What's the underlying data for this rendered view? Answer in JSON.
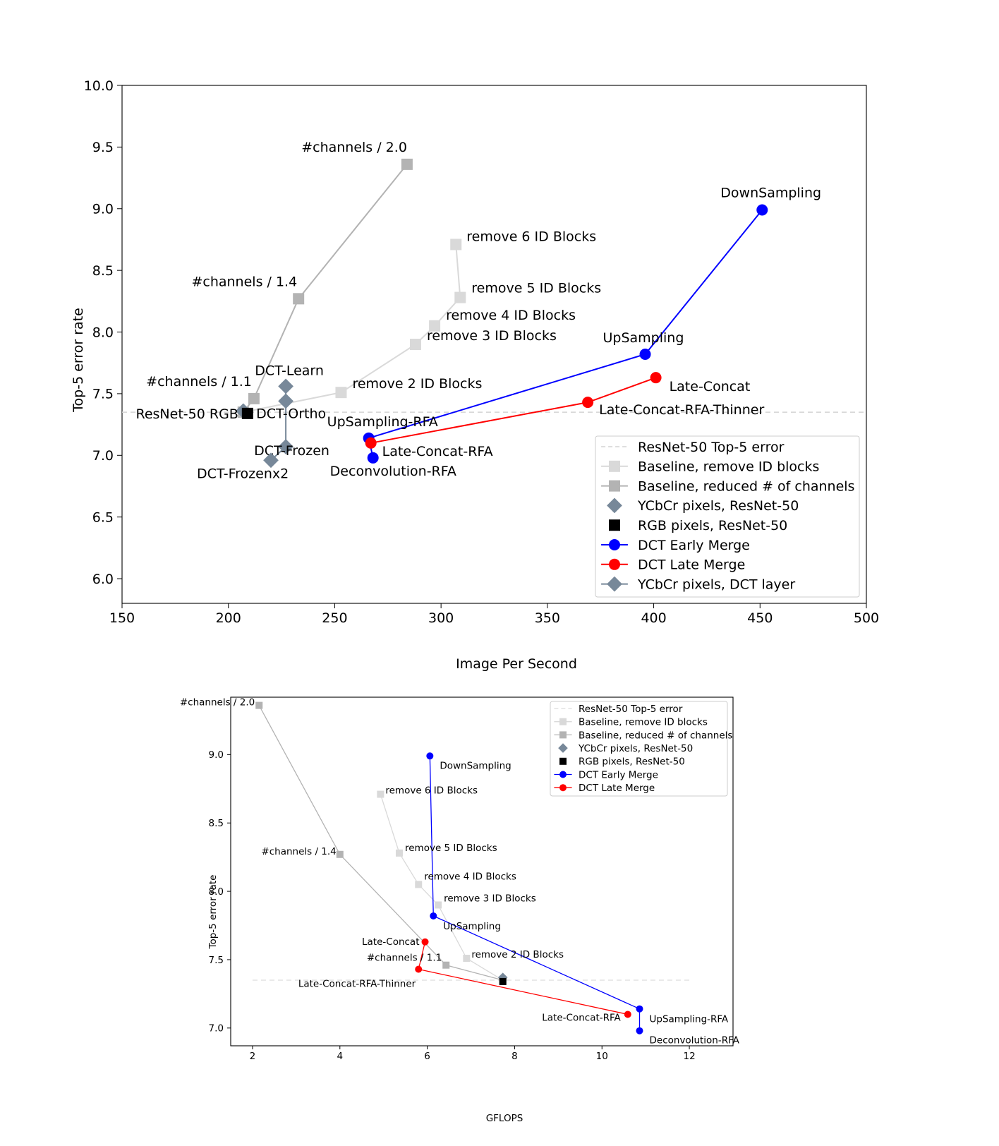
{
  "chart_data": [
    {
      "type": "scatter",
      "title": "",
      "xlabel": "Image Per Second",
      "ylabel": "Top-5 error rate",
      "xlim": [
        150,
        500
      ],
      "ylim": [
        5.8,
        10.0
      ],
      "xticks": [
        "150",
        "200",
        "250",
        "300",
        "350",
        "400",
        "450",
        "500"
      ],
      "yticks": [
        "6.0",
        "6.5",
        "7.0",
        "7.5",
        "8.0",
        "8.5",
        "9.0",
        "9.5",
        "10.0"
      ],
      "grid": false,
      "legend_position": "bottom-right",
      "reference_line": {
        "name": "ResNet-50 Top-5 error",
        "y": 7.35,
        "color": "#d3d3d3"
      },
      "series": [
        {
          "name": "Baseline, remove ID blocks",
          "marker": "square",
          "color": "#d9d9d9",
          "connected": true,
          "points": [
            {
              "x": 207,
              "y": 7.35,
              "label": ""
            },
            {
              "x": 253,
              "y": 7.51,
              "label": "remove 2 ID Blocks"
            },
            {
              "x": 288,
              "y": 7.9,
              "label": "remove 3 ID Blocks"
            },
            {
              "x": 297,
              "y": 8.05,
              "label": "remove 4 ID Blocks"
            },
            {
              "x": 309,
              "y": 8.28,
              "label": "remove 5 ID Blocks"
            },
            {
              "x": 307,
              "y": 8.71,
              "label": "remove 6 ID Blocks"
            }
          ]
        },
        {
          "name": "Baseline, reduced # of channels",
          "marker": "square",
          "color": "#b3b3b3",
          "connected": true,
          "points": [
            {
              "x": 207,
              "y": 7.35,
              "label": ""
            },
            {
              "x": 212,
              "y": 7.46,
              "label": "#channels / 1.1"
            },
            {
              "x": 233,
              "y": 8.27,
              "label": "#channels / 1.4"
            },
            {
              "x": 284,
              "y": 9.36,
              "label": "#channels / 2.0"
            }
          ]
        },
        {
          "name": "YCbCr pixels, ResNet-50",
          "marker": "diamond",
          "color": "#778899",
          "connected": false,
          "points": [
            {
              "x": 207,
              "y": 7.36,
              "label": ""
            }
          ]
        },
        {
          "name": "RGB pixels, ResNet-50",
          "marker": "square",
          "color": "#000000",
          "connected": false,
          "points": [
            {
              "x": 209,
              "y": 7.34,
              "label": "ResNet-50 RGB"
            }
          ]
        },
        {
          "name": "DCT Early Merge",
          "marker": "circle",
          "color": "#0000ff",
          "connected": true,
          "points": [
            {
              "x": 268,
              "y": 6.98,
              "label": "Deconvolution-RFA"
            },
            {
              "x": 266,
              "y": 7.14,
              "label": "UpSampling-RFA"
            },
            {
              "x": 396,
              "y": 7.82,
              "label": "UpSampling"
            },
            {
              "x": 451,
              "y": 8.99,
              "label": "DownSampling"
            }
          ]
        },
        {
          "name": "DCT Late Merge",
          "marker": "circle",
          "color": "#ff0000",
          "connected": true,
          "points": [
            {
              "x": 267,
              "y": 7.1,
              "label": "Late-Concat-RFA"
            },
            {
              "x": 369,
              "y": 7.43,
              "label": "Late-Concat-RFA-Thinner"
            },
            {
              "x": 401,
              "y": 7.63,
              "label": "Late-Concat"
            }
          ]
        },
        {
          "name": "YCbCr pixels, DCT layer",
          "marker": "diamond",
          "color": "#778899",
          "connected": true,
          "points": [
            {
              "x": 227,
              "y": 7.56,
              "label": "DCT-Learn"
            },
            {
              "x": 227,
              "y": 7.44,
              "label": "DCT-Ortho"
            },
            {
              "x": 227,
              "y": 7.07,
              "label": "DCT-Frozen"
            },
            {
              "x": 220,
              "y": 6.96,
              "label": "DCT-Frozenx2"
            }
          ]
        }
      ]
    },
    {
      "type": "scatter",
      "title": "",
      "xlabel": "GFLOPS",
      "ylabel": "Top-5 error rate",
      "xlim": [
        1.5,
        13.0
      ],
      "ylim": [
        6.87,
        9.42
      ],
      "xticks": [
        "2",
        "4",
        "6",
        "8",
        "10",
        "12"
      ],
      "yticks": [
        "7.0",
        "7.5",
        "8.0",
        "8.5",
        "9.0"
      ],
      "grid": false,
      "legend_position": "top-right",
      "reference_line": {
        "name": "ResNet-50 Top-5 error",
        "y": 7.35,
        "color": "#d3d3d3"
      },
      "series": [
        {
          "name": "Baseline, remove ID blocks",
          "marker": "square",
          "color": "#d9d9d9",
          "connected": true,
          "points": [
            {
              "x": 7.73,
              "y": 7.35,
              "label": ""
            },
            {
              "x": 6.9,
              "y": 7.51,
              "label": "remove 2 ID Blocks"
            },
            {
              "x": 6.25,
              "y": 7.9,
              "label": "remove 3 ID Blocks"
            },
            {
              "x": 5.8,
              "y": 8.05,
              "label": "remove 4 ID Blocks"
            },
            {
              "x": 5.36,
              "y": 8.28,
              "label": "remove 5 ID Blocks"
            },
            {
              "x": 4.93,
              "y": 8.71,
              "label": "remove 6 ID Blocks"
            }
          ]
        },
        {
          "name": "Baseline, reduced # of channels",
          "marker": "square",
          "color": "#b3b3b3",
          "connected": true,
          "points": [
            {
              "x": 7.73,
              "y": 7.35,
              "label": ""
            },
            {
              "x": 6.43,
              "y": 7.46,
              "label": "#channels / 1.1"
            },
            {
              "x": 4.0,
              "y": 8.27,
              "label": "#channels / 1.4"
            },
            {
              "x": 2.15,
              "y": 9.36,
              "label": "#channels / 2.0"
            }
          ]
        },
        {
          "name": "YCbCr pixels, ResNet-50",
          "marker": "diamond",
          "color": "#778899",
          "connected": false,
          "points": [
            {
              "x": 7.73,
              "y": 7.37,
              "label": ""
            }
          ]
        },
        {
          "name": "RGB pixels, ResNet-50",
          "marker": "square",
          "color": "#000000",
          "connected": false,
          "points": [
            {
              "x": 7.73,
              "y": 7.34,
              "label": ""
            }
          ]
        },
        {
          "name": "DCT Early Merge",
          "marker": "circle",
          "color": "#0000ff",
          "connected": true,
          "points": [
            {
              "x": 10.86,
              "y": 6.98,
              "label": "Deconvolution-RFA"
            },
            {
              "x": 10.86,
              "y": 7.14,
              "label": "UpSampling-RFA"
            },
            {
              "x": 6.14,
              "y": 7.82,
              "label": "UpSampling"
            },
            {
              "x": 6.06,
              "y": 8.99,
              "label": "DownSampling"
            }
          ]
        },
        {
          "name": "DCT Late Merge",
          "marker": "circle",
          "color": "#ff0000",
          "connected": true,
          "points": [
            {
              "x": 10.59,
              "y": 7.1,
              "label": "Late-Concat-RFA"
            },
            {
              "x": 5.8,
              "y": 7.43,
              "label": "Late-Concat-RFA-Thinner"
            },
            {
              "x": 5.95,
              "y": 7.63,
              "label": "Late-Concat"
            }
          ]
        }
      ]
    }
  ]
}
